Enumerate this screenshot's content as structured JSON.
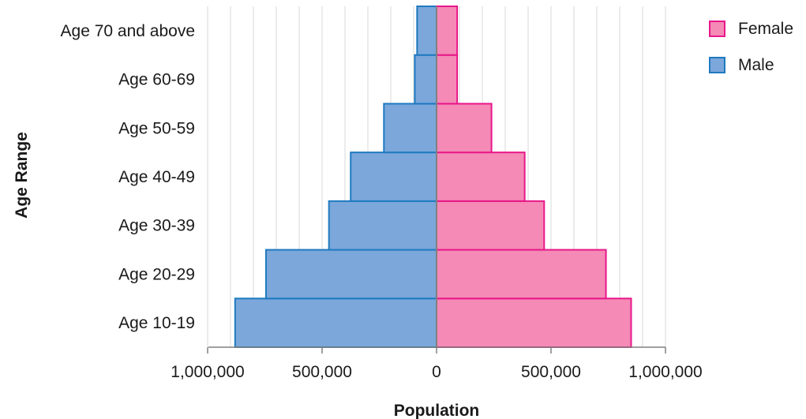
{
  "chart_data": {
    "type": "bar",
    "orientation": "horizontal",
    "subtype": "population-pyramid",
    "title": "",
    "xlabel": "Population",
    "ylabel": "Age Range",
    "categories": [
      "Age 10-19",
      "Age 20-29",
      "Age 30-39",
      "Age 40-49",
      "Age 50-59",
      "Age 60-69",
      "Age 70 and above"
    ],
    "series": [
      {
        "name": "Male",
        "side": "left",
        "color": "#7BA7DB",
        "stroke": "#1F7AC0",
        "values": [
          880000,
          745000,
          470000,
          375000,
          230000,
          95000,
          85000
        ]
      },
      {
        "name": "Female",
        "side": "right",
        "color": "#F48AB5",
        "stroke": "#E8188A",
        "values": [
          850000,
          740000,
          470000,
          385000,
          240000,
          90000,
          90000
        ]
      }
    ],
    "xlim": [
      -1000000,
      1000000
    ],
    "xticks": [
      -1000000,
      -500000,
      0,
      500000,
      1000000
    ],
    "xtick_labels": [
      "1,000,000",
      "500,000",
      "0",
      "500,000",
      "1,000,000"
    ],
    "grid": true,
    "legend": {
      "placement": "top-right",
      "entries": [
        "Female",
        "Male"
      ]
    }
  }
}
